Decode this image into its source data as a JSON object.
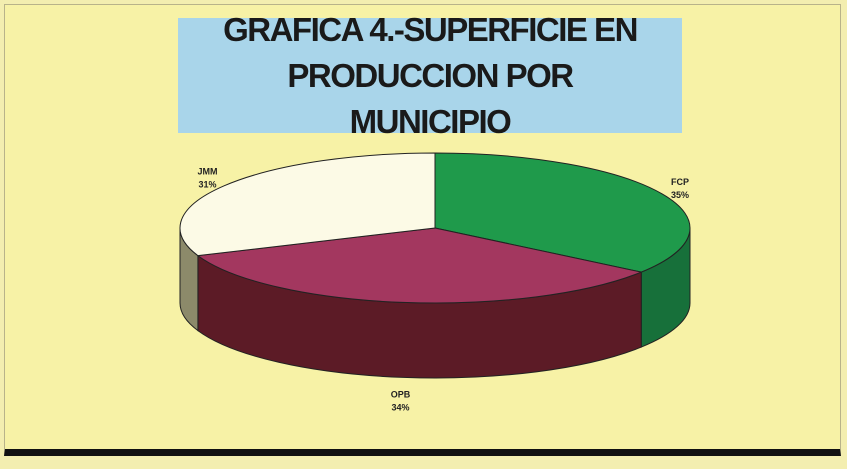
{
  "chart_data": {
    "type": "pie3d",
    "title": "GRAFICA 4.-SUPERFICIE EN PRODUCCION POR MUNICIPIO",
    "categories": [
      "FCP",
      "OPB",
      "JMM"
    ],
    "values": [
      35,
      34,
      31
    ],
    "value_labels": [
      "35%",
      "34%",
      "31%"
    ],
    "colors": [
      "#1f9a4b",
      "#a3375f",
      "#fcfae6"
    ],
    "side_colors": [
      "#17703a",
      "#5c1b26",
      "#8c8a6a"
    ]
  }
}
